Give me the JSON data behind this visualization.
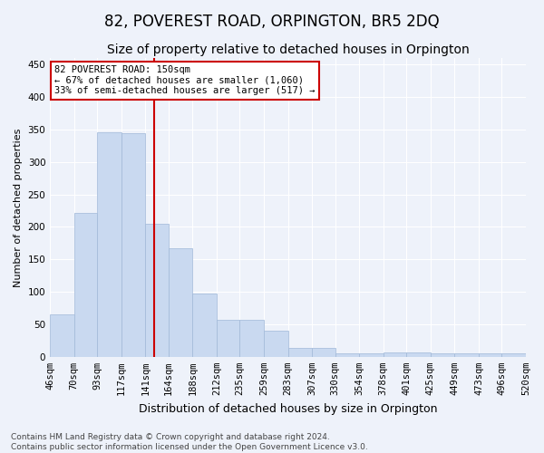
{
  "title": "82, POVEREST ROAD, ORPINGTON, BR5 2DQ",
  "subtitle": "Size of property relative to detached houses in Orpington",
  "xlabel": "Distribution of detached houses by size in Orpington",
  "ylabel": "Number of detached properties",
  "bin_labels": [
    "46sqm",
    "70sqm",
    "93sqm",
    "117sqm",
    "141sqm",
    "164sqm",
    "188sqm",
    "212sqm",
    "235sqm",
    "259sqm",
    "283sqm",
    "307sqm",
    "330sqm",
    "354sqm",
    "378sqm",
    "401sqm",
    "425sqm",
    "449sqm",
    "473sqm",
    "496sqm",
    "520sqm"
  ],
  "bar_values": [
    65,
    222,
    345,
    344,
    205,
    167,
    98,
    57,
    57,
    40,
    13,
    13,
    6,
    6,
    7,
    7,
    5,
    5,
    5,
    5
  ],
  "bar_color": "#c9d9f0",
  "bar_edge_color": "#a0b8d8",
  "property_line_label": "82 POVEREST ROAD: 150sqm",
  "annotation_line1": "← 67% of detached houses are smaller (1,060)",
  "annotation_line2": "33% of semi-detached houses are larger (517) →",
  "annotation_box_facecolor": "#ffffff",
  "annotation_box_edgecolor": "#cc0000",
  "vline_color": "#cc0000",
  "vline_x": 150,
  "ylim": [
    0,
    460
  ],
  "yticks": [
    0,
    50,
    100,
    150,
    200,
    250,
    300,
    350,
    400,
    450
  ],
  "title_fontsize": 12,
  "subtitle_fontsize": 10,
  "xlabel_fontsize": 9,
  "ylabel_fontsize": 8,
  "tick_fontsize": 7.5,
  "annotation_fontsize": 7.5,
  "footer_fontsize": 6.5,
  "footer_line1": "Contains HM Land Registry data © Crown copyright and database right 2024.",
  "footer_line2": "Contains public sector information licensed under the Open Government Licence v3.0.",
  "bg_color": "#eef2fa",
  "plot_bg_color": "#eef2fa",
  "grid_color": "#ffffff",
  "spine_color": "#cccccc"
}
